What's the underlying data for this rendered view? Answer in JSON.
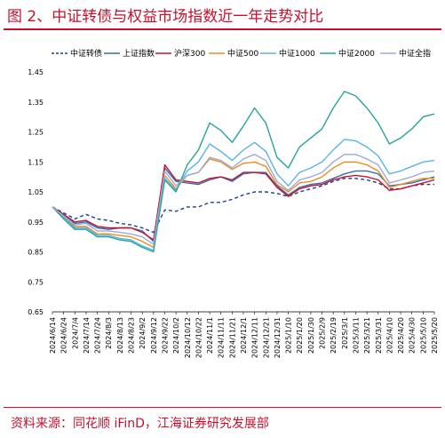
{
  "header": {
    "title": "图 2、中证转债与权益市场指数近一年走势对比",
    "source": "资料来源：同花顺 iFinD，江海证券研究发展部"
  },
  "chart_data": {
    "type": "line",
    "title": "",
    "xlabel": "",
    "ylabel": "",
    "ylim": [
      0.65,
      1.45
    ],
    "yticks": [
      "0.65",
      "0.75",
      "0.85",
      "0.95",
      "1.05",
      "1.15",
      "1.25",
      "1.35",
      "1.45"
    ],
    "grid": false,
    "legend_position": "top",
    "x": [
      "2024/6/14",
      "2024/6/24",
      "2024/7/4",
      "2024/7/14",
      "2024/7/24",
      "2024/8/3",
      "2024/8/13",
      "2024/8/23",
      "2024/9/2",
      "2024/9/12",
      "2024/9/22",
      "2024/10/2",
      "2024/10/12",
      "2024/10/22",
      "2024/11/1",
      "2024/11/11",
      "2024/11/21",
      "2024/12/1",
      "2024/12/11",
      "2024/12/21",
      "2024/12/31",
      "2025/1/10",
      "2025/1/20",
      "2025/1/30",
      "2025/2/9",
      "2025/2/19",
      "2025/3/1",
      "2025/3/11",
      "2025/3/21",
      "2025/3/31",
      "2025/4/10",
      "2025/4/20",
      "2025/4/30",
      "2025/5/10",
      "2025/5/20"
    ],
    "series": [
      {
        "name": "中证转债",
        "color": "#1f3f87",
        "dashed": true,
        "values": [
          1.0,
          0.98,
          0.96,
          0.975,
          0.96,
          0.955,
          0.945,
          0.94,
          0.93,
          0.915,
          0.99,
          0.985,
          1.0,
          1.0,
          1.015,
          1.015,
          1.025,
          1.04,
          1.05,
          1.05,
          1.045,
          1.035,
          1.05,
          1.06,
          1.07,
          1.085,
          1.095,
          1.095,
          1.09,
          1.08,
          1.06,
          1.06,
          1.07,
          1.075,
          1.075
        ]
      },
      {
        "name": "上证指数",
        "color": "#2f6fb8",
        "values": [
          1.0,
          0.975,
          0.945,
          0.95,
          0.93,
          0.925,
          0.93,
          0.93,
          0.92,
          0.885,
          1.13,
          1.085,
          1.08,
          1.075,
          1.09,
          1.1,
          1.085,
          1.11,
          1.115,
          1.115,
          1.07,
          1.04,
          1.065,
          1.075,
          1.08,
          1.095,
          1.11,
          1.12,
          1.12,
          1.11,
          1.07,
          1.075,
          1.08,
          1.09,
          1.1
        ]
      },
      {
        "name": "沪深300",
        "color": "#c8102e",
        "values": [
          1.0,
          0.975,
          0.95,
          0.955,
          0.935,
          0.93,
          0.93,
          0.93,
          0.915,
          0.89,
          1.14,
          1.09,
          1.085,
          1.08,
          1.095,
          1.1,
          1.09,
          1.115,
          1.115,
          1.11,
          1.065,
          1.035,
          1.06,
          1.07,
          1.075,
          1.09,
          1.1,
          1.105,
          1.1,
          1.09,
          1.055,
          1.06,
          1.07,
          1.08,
          1.09
        ]
      },
      {
        "name": "中证500",
        "color": "#f08c1e",
        "values": [
          1.0,
          0.97,
          0.935,
          0.935,
          0.91,
          0.91,
          0.905,
          0.9,
          0.885,
          0.865,
          1.105,
          1.06,
          1.105,
          1.115,
          1.16,
          1.15,
          1.125,
          1.145,
          1.15,
          1.135,
          1.075,
          1.05,
          1.08,
          1.085,
          1.1,
          1.13,
          1.15,
          1.15,
          1.14,
          1.12,
          1.065,
          1.075,
          1.085,
          1.095,
          1.095
        ]
      },
      {
        "name": "中证1000",
        "color": "#5ab4e5",
        "values": [
          1.0,
          0.965,
          0.93,
          0.93,
          0.905,
          0.905,
          0.895,
          0.89,
          0.87,
          0.855,
          1.095,
          1.055,
          1.12,
          1.15,
          1.21,
          1.185,
          1.155,
          1.19,
          1.215,
          1.185,
          1.11,
          1.07,
          1.115,
          1.13,
          1.15,
          1.19,
          1.225,
          1.22,
          1.2,
          1.17,
          1.11,
          1.12,
          1.135,
          1.15,
          1.155
        ]
      },
      {
        "name": "中证2000",
        "color": "#26a69a",
        "values": [
          1.0,
          0.96,
          0.925,
          0.925,
          0.9,
          0.9,
          0.89,
          0.885,
          0.865,
          0.85,
          1.09,
          1.05,
          1.14,
          1.19,
          1.28,
          1.255,
          1.215,
          1.27,
          1.33,
          1.28,
          1.165,
          1.13,
          1.2,
          1.23,
          1.26,
          1.33,
          1.385,
          1.37,
          1.33,
          1.28,
          1.21,
          1.23,
          1.26,
          1.3,
          1.31
        ]
      },
      {
        "name": "中证全指",
        "color": "#9fa8da",
        "values": [
          1.0,
          0.97,
          0.94,
          0.945,
          0.92,
          0.92,
          0.915,
          0.91,
          0.9,
          0.875,
          1.12,
          1.07,
          1.105,
          1.115,
          1.165,
          1.155,
          1.13,
          1.16,
          1.175,
          1.155,
          1.085,
          1.055,
          1.09,
          1.1,
          1.115,
          1.15,
          1.175,
          1.175,
          1.16,
          1.14,
          1.08,
          1.09,
          1.1,
          1.115,
          1.12
        ]
      }
    ]
  }
}
